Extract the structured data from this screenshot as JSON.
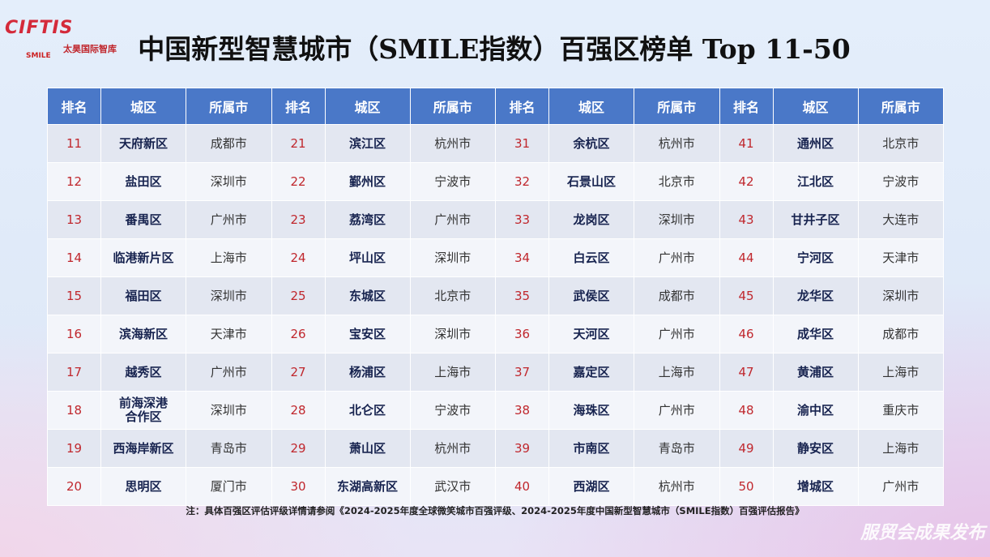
{
  "logos": {
    "ciftis": "CIFTIS",
    "smile": "SMILE",
    "thinktank": "太昊国际智库",
    "release": "服贸会成果发布"
  },
  "header": {
    "title": "中国新型智慧城市（SMILE指数）百强区榜单 Top 11-50"
  },
  "table": {
    "header": [
      "排名",
      "城区",
      "所属市",
      "排名",
      "城区",
      "所属市",
      "排名",
      "城区",
      "所属市",
      "排名",
      "城区",
      "所属市"
    ],
    "rows": [
      [
        11,
        "天府新区",
        "成都市",
        21,
        "滨江区",
        "杭州市",
        31,
        "余杭区",
        "杭州市",
        41,
        "通州区",
        "北京市"
      ],
      [
        12,
        "盐田区",
        "深圳市",
        22,
        "鄞州区",
        "宁波市",
        32,
        "石景山区",
        "北京市",
        42,
        "江北区",
        "宁波市"
      ],
      [
        13,
        "番禺区",
        "广州市",
        23,
        "荔湾区",
        "广州市",
        33,
        "龙岗区",
        "深圳市",
        43,
        "甘井子区",
        "大连市"
      ],
      [
        14,
        "临港新片区",
        "上海市",
        24,
        "坪山区",
        "深圳市",
        34,
        "白云区",
        "广州市",
        44,
        "宁河区",
        "天津市"
      ],
      [
        15,
        "福田区",
        "深圳市",
        25,
        "东城区",
        "北京市",
        35,
        "武侯区",
        "成都市",
        45,
        "龙华区",
        "深圳市"
      ],
      [
        16,
        "滨海新区",
        "天津市",
        26,
        "宝安区",
        "深圳市",
        36,
        "天河区",
        "广州市",
        46,
        "成华区",
        "成都市"
      ],
      [
        17,
        "越秀区",
        "广州市",
        27,
        "杨浦区",
        "上海市",
        37,
        "嘉定区",
        "上海市",
        47,
        "黄浦区",
        "上海市"
      ],
      [
        18,
        "前海深港\n合作区",
        "深圳市",
        28,
        "北仑区",
        "宁波市",
        38,
        "海珠区",
        "广州市",
        48,
        "渝中区",
        "重庆市"
      ],
      [
        19,
        "西海岸新区",
        "青岛市",
        29,
        "萧山区",
        "杭州市",
        39,
        "市南区",
        "青岛市",
        49,
        "静安区",
        "上海市"
      ],
      [
        20,
        "思明区",
        "厦门市",
        30,
        "东湖高新区",
        "武汉市",
        40,
        "西湖区",
        "杭州市",
        50,
        "增城区",
        "广州市"
      ]
    ]
  },
  "note": "注：具体百强区评估评级详情请参阅《2024-2025年度全球微笑城市百强评级、2024-2025年度中国新型智慧城市（SMILE指数）百强评估报告》"
}
